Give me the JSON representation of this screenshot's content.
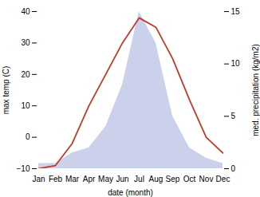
{
  "chart_data": {
    "type": "line",
    "categories": [
      "Jan",
      "Feb",
      "Mar",
      "Apr",
      "May",
      "Jun",
      "Jul",
      "Aug",
      "Sep",
      "Oct",
      "Nov",
      "Dec"
    ],
    "xlabel": "date (month)",
    "ylabel": "max temp (C)",
    "y2label": "med. precipitation (kg/m2)",
    "ylim": [
      -10,
      40
    ],
    "yticks": [
      -10,
      0,
      10,
      20,
      30,
      40
    ],
    "y2lim": [
      0,
      15
    ],
    "y2ticks": [
      0,
      5,
      10,
      15
    ],
    "grid": false,
    "series": [
      {
        "type": "area",
        "axis": "y2",
        "color": "#c5cce8",
        "values": [
          0.5,
          0.5,
          1.5,
          2.0,
          4.0,
          8.0,
          15.0,
          12.0,
          5.0,
          2.0,
          1.0,
          0.5
        ]
      },
      {
        "type": "line",
        "color": "#c0392b",
        "values": [
          -10,
          -9,
          -2,
          10,
          20,
          30,
          38,
          35,
          25,
          12,
          0,
          -5
        ]
      }
    ]
  }
}
